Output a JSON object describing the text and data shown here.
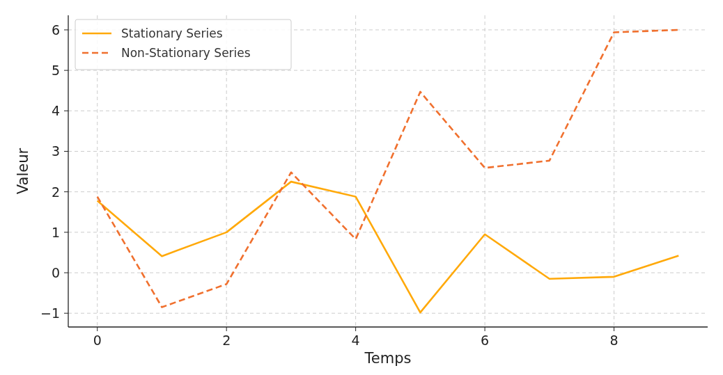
{
  "chart_data": {
    "type": "line",
    "xlabel": "Temps",
    "ylabel": "Valeur",
    "x": [
      0,
      1,
      2,
      3,
      4,
      5,
      6,
      7,
      8,
      9
    ],
    "series": [
      {
        "name": "Stationary Series",
        "color": "#ffa90a",
        "line_style": "solid",
        "values": [
          1.78,
          0.41,
          1.0,
          2.25,
          1.88,
          -0.98,
          0.95,
          -0.15,
          -0.1,
          0.42
        ]
      },
      {
        "name": "Non-Stationary Series",
        "color": "#f0702e",
        "line_style": "dashed",
        "values": [
          1.88,
          -0.85,
          -0.28,
          2.48,
          0.83,
          4.47,
          2.59,
          2.77,
          5.94,
          6.0
        ]
      }
    ],
    "xlim": [
      -0.45,
      9.45
    ],
    "xticks": [
      0,
      2,
      4,
      6,
      8
    ],
    "ylim": [
      -1.34,
      6.36
    ],
    "yticks": [
      {
        "value": -1,
        "label": "−1"
      },
      0,
      1,
      2,
      3,
      4,
      5,
      6
    ],
    "grid": true,
    "legend": "top left"
  }
}
